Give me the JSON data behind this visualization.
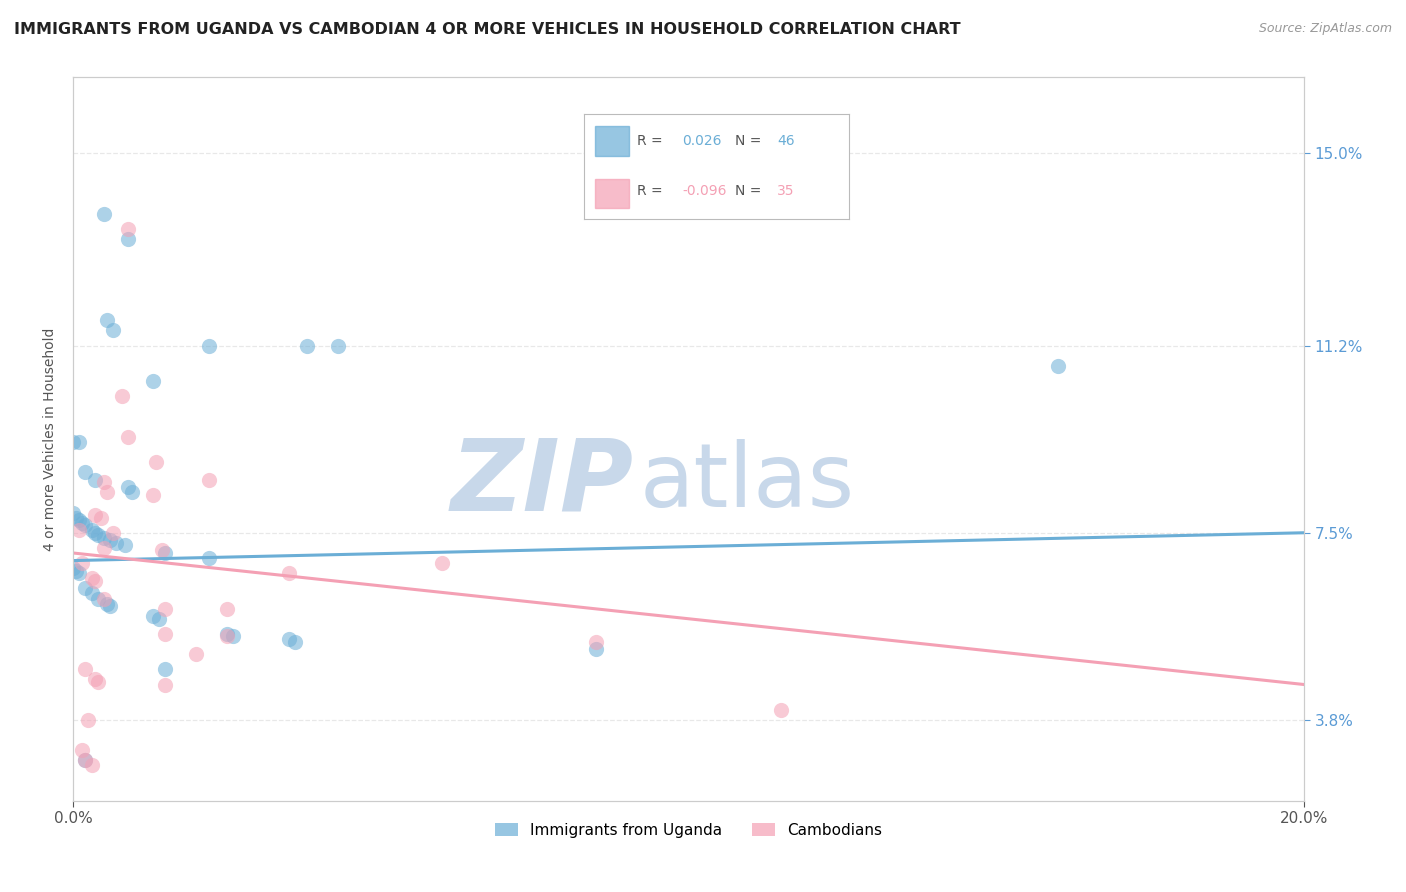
{
  "title": "IMMIGRANTS FROM UGANDA VS CAMBODIAN 4 OR MORE VEHICLES IN HOUSEHOLD CORRELATION CHART",
  "source": "Source: ZipAtlas.com",
  "ylabel_ticks": [
    3.8,
    7.5,
    11.2,
    15.0
  ],
  "xlim": [
    0.0,
    20.0
  ],
  "ylim": [
    2.2,
    16.5
  ],
  "legend_entries": [
    {
      "label": "Immigrants from Uganda",
      "R": "0.026",
      "N": "46",
      "color": "#6baed6"
    },
    {
      "label": "Cambodians",
      "R": "-0.096",
      "N": "35",
      "color": "#f4a0b4"
    }
  ],
  "watermark_zip": "ZIP",
  "watermark_atlas": "atlas",
  "watermark_color": "#c8d8ea",
  "blue_scatter": [
    [
      0.5,
      13.8
    ],
    [
      0.9,
      13.3
    ],
    [
      0.55,
      11.7
    ],
    [
      0.65,
      11.5
    ],
    [
      2.2,
      11.2
    ],
    [
      3.8,
      11.2
    ],
    [
      4.3,
      11.2
    ],
    [
      1.3,
      10.5
    ],
    [
      0.0,
      9.3
    ],
    [
      0.1,
      9.3
    ],
    [
      0.2,
      8.7
    ],
    [
      0.35,
      8.55
    ],
    [
      0.9,
      8.4
    ],
    [
      0.95,
      8.3
    ],
    [
      0.0,
      7.9
    ],
    [
      0.05,
      7.8
    ],
    [
      0.1,
      7.75
    ],
    [
      0.15,
      7.7
    ],
    [
      0.2,
      7.65
    ],
    [
      0.3,
      7.55
    ],
    [
      0.35,
      7.5
    ],
    [
      0.4,
      7.45
    ],
    [
      0.5,
      7.4
    ],
    [
      0.6,
      7.35
    ],
    [
      0.7,
      7.3
    ],
    [
      0.85,
      7.25
    ],
    [
      1.5,
      7.1
    ],
    [
      2.2,
      7.0
    ],
    [
      0.0,
      6.8
    ],
    [
      0.05,
      6.75
    ],
    [
      0.1,
      6.7
    ],
    [
      0.2,
      6.4
    ],
    [
      0.3,
      6.3
    ],
    [
      0.4,
      6.2
    ],
    [
      0.55,
      6.1
    ],
    [
      0.6,
      6.05
    ],
    [
      1.3,
      5.85
    ],
    [
      1.4,
      5.8
    ],
    [
      2.5,
      5.5
    ],
    [
      2.6,
      5.45
    ],
    [
      3.5,
      5.4
    ],
    [
      3.6,
      5.35
    ],
    [
      1.5,
      4.8
    ],
    [
      0.2,
      3.0
    ],
    [
      16.0,
      10.8
    ],
    [
      8.5,
      5.2
    ]
  ],
  "pink_scatter": [
    [
      0.9,
      13.5
    ],
    [
      0.8,
      10.2
    ],
    [
      0.9,
      9.4
    ],
    [
      1.35,
      8.9
    ],
    [
      0.5,
      8.5
    ],
    [
      0.55,
      8.3
    ],
    [
      1.3,
      8.25
    ],
    [
      0.35,
      7.85
    ],
    [
      0.45,
      7.8
    ],
    [
      0.65,
      7.5
    ],
    [
      0.5,
      7.2
    ],
    [
      1.45,
      7.15
    ],
    [
      0.15,
      6.9
    ],
    [
      0.3,
      6.6
    ],
    [
      0.35,
      6.55
    ],
    [
      2.2,
      8.55
    ],
    [
      0.5,
      6.2
    ],
    [
      1.5,
      6.0
    ],
    [
      2.5,
      6.0
    ],
    [
      1.5,
      5.5
    ],
    [
      2.5,
      5.45
    ],
    [
      2.0,
      5.1
    ],
    [
      0.2,
      4.8
    ],
    [
      0.35,
      4.6
    ],
    [
      0.4,
      4.55
    ],
    [
      1.5,
      4.5
    ],
    [
      0.25,
      3.8
    ],
    [
      8.5,
      5.35
    ],
    [
      11.5,
      4.0
    ],
    [
      0.15,
      3.2
    ],
    [
      6.0,
      6.9
    ],
    [
      3.5,
      6.7
    ],
    [
      0.1,
      7.55
    ],
    [
      0.2,
      3.0
    ],
    [
      0.3,
      2.9
    ]
  ],
  "blue_line": [
    0.0,
    6.95,
    20.0,
    7.5
  ],
  "pink_line": [
    0.0,
    7.1,
    20.0,
    4.5
  ],
  "blue_color": "#6baed6",
  "pink_color": "#f4a0b4",
  "grid_color": "#e8e8e8",
  "bg_color": "#ffffff",
  "right_axis_color": "#5b9bd5"
}
